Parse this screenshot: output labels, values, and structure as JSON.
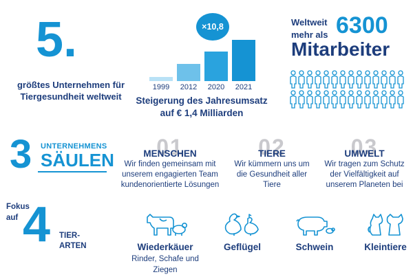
{
  "rank": {
    "number": "5.",
    "text": "größtes Unternehmen für Tiergesundheit weltweit"
  },
  "revenue": {
    "multiplier": "×10,8",
    "years": [
      "1999",
      "2012",
      "2020",
      "2021"
    ],
    "bar_levels": [
      0.09,
      0.35,
      0.62,
      0.86
    ],
    "bar_colors": [
      "#b8e1f6",
      "#6ec1ea",
      "#2aa3de",
      "#1593d3"
    ],
    "caption": "Steigerung des Jahresumsatz auf € 1,4 Milliarden"
  },
  "employees": {
    "prefix": "Weltweit mehr als",
    "count": "6300",
    "label": "Mitarbeiter"
  },
  "pillars": {
    "number": "3",
    "heading_small": "UNTERNEHMENS",
    "heading_big": "SÄULEN",
    "items": [
      {
        "num": "01",
        "title": "MENSCHEN",
        "text": "Wir finden gemeinsam mit unserem engagierten Team kundenorientierte Lösungen"
      },
      {
        "num": "02",
        "title": "TIERE",
        "text": "Wir kümmern uns um die Gesundheit aller Tiere"
      },
      {
        "num": "03",
        "title": "UMWELT",
        "text": "Wir tragen zum Schutz der Vielfältigkeit auf unserem Planeten bei"
      }
    ]
  },
  "species": {
    "prefix": "Fokus auf",
    "number": "4",
    "suffix": "TIER-ARTEN",
    "items": [
      {
        "name": "Wiederkäuer",
        "sub": "Rinder, Schafe und Ziegen",
        "icon": "cow-sheep-icon"
      },
      {
        "name": "Geflügel",
        "sub": "",
        "icon": "poultry-icon"
      },
      {
        "name": "Schwein",
        "sub": "",
        "icon": "pig-icon"
      },
      {
        "name": "Kleintiere",
        "sub": "",
        "icon": "pets-icon"
      }
    ]
  },
  "colors": {
    "dark_blue": "#1d3d7c",
    "accent_blue": "#1593d3",
    "light_grey": "#c9c9cd"
  }
}
